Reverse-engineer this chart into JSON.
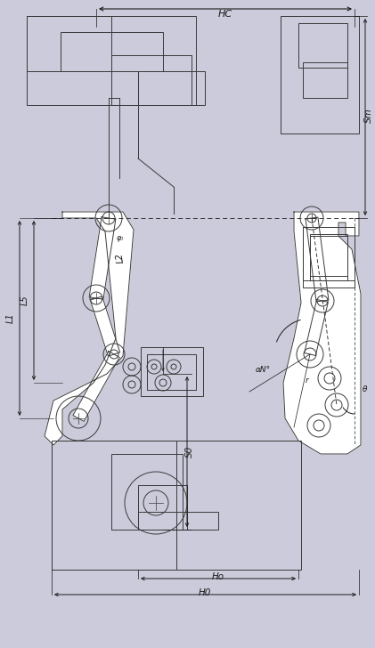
{
  "bg_color": "#cbcbdb",
  "line_color": "#3a3a3a",
  "dim_color": "#1a1a1a",
  "figsize": [
    4.21,
    7.28
  ],
  "dpi": 100,
  "labels": {
    "Hc": "HC",
    "Sm": "Sm",
    "L1": "L1",
    "L2": "L2",
    "L5": "L5",
    "S0": "S0",
    "Ho": "Ho",
    "H0": "H0",
    "theta": "θ",
    "alpha": "αN°",
    "r": "r"
  }
}
